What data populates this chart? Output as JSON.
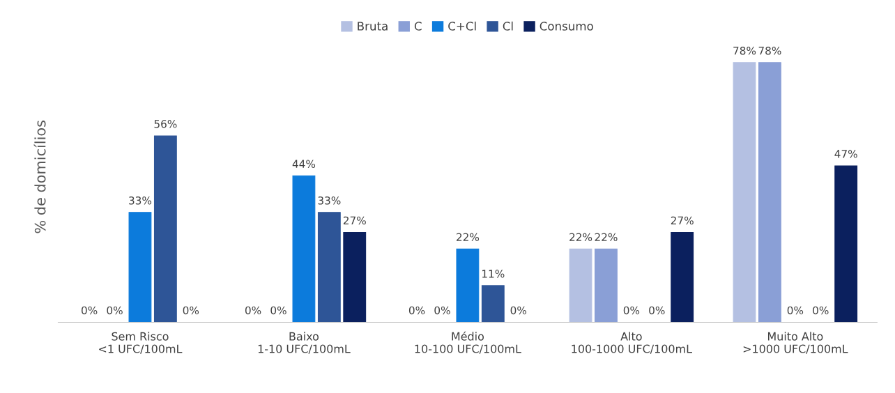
{
  "chart_data": {
    "type": "bar",
    "ylabel": "% de domicílios",
    "legend": "top",
    "grid": false,
    "categories": [
      "Sem Risco\n<1 UFC/100mL",
      "Baixo\n1-10 UFC/100mL",
      "Médio\n10-100 UFC/100mL",
      "Alto\n100-1000 UFC/100mL",
      "Muito Alto\n>1000 UFC/100mL"
    ],
    "series": [
      {
        "name": "Bruta",
        "color": "#b4c0e2",
        "values": [
          0,
          0,
          0,
          22,
          78
        ],
        "value_labels": [
          "0%",
          "0%",
          "0%",
          "22%",
          "78%"
        ]
      },
      {
        "name": "C",
        "color": "#8a9fd6",
        "values": [
          0,
          0,
          0,
          22,
          78
        ],
        "value_labels": [
          "0%",
          "0%",
          "0%",
          "22%",
          "78%"
        ]
      },
      {
        "name": "C+Cl",
        "color": "#0c7bdc",
        "values": [
          33,
          44,
          22,
          0,
          0
        ],
        "value_labels": [
          "33%",
          "44%",
          "22%",
          "0%",
          "0%"
        ]
      },
      {
        "name": "Cl",
        "color": "#2e5597",
        "values": [
          56,
          33,
          11,
          0,
          0
        ],
        "value_labels": [
          "56%",
          "33%",
          "11%",
          "0%",
          "0%"
        ]
      },
      {
        "name": "Consumo",
        "color": "#0b205e",
        "values": [
          0,
          27,
          0,
          27,
          47
        ],
        "value_labels": [
          "0%",
          "27%",
          "0%",
          "27%",
          "47%"
        ]
      }
    ]
  }
}
